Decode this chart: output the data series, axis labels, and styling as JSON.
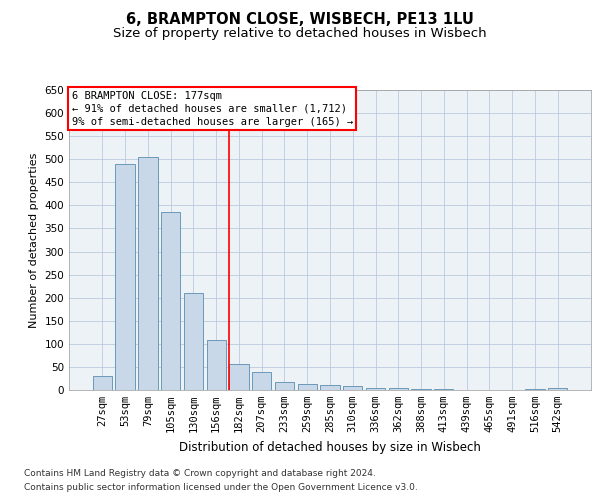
{
  "title1": "6, BRAMPTON CLOSE, WISBECH, PE13 1LU",
  "title2": "Size of property relative to detached houses in Wisbech",
  "xlabel": "Distribution of detached houses by size in Wisbech",
  "ylabel": "Number of detached properties",
  "categories": [
    "27sqm",
    "53sqm",
    "79sqm",
    "105sqm",
    "130sqm",
    "156sqm",
    "182sqm",
    "207sqm",
    "233sqm",
    "259sqm",
    "285sqm",
    "310sqm",
    "336sqm",
    "362sqm",
    "388sqm",
    "413sqm",
    "439sqm",
    "465sqm",
    "491sqm",
    "516sqm",
    "542sqm"
  ],
  "values": [
    30,
    490,
    505,
    385,
    210,
    108,
    57,
    38,
    17,
    13,
    10,
    9,
    5,
    5,
    3,
    3,
    1,
    1,
    1,
    3,
    4
  ],
  "bar_color": "#c8d8e8",
  "bar_edge_color": "#5b8db0",
  "grid_color": "#b0c4d8",
  "background_color": "#edf2f7",
  "annotation_line_index": 6,
  "annotation_box_text": [
    "6 BRAMPTON CLOSE: 177sqm",
    "← 91% of detached houses are smaller (1,712)",
    "9% of semi-detached houses are larger (165) →"
  ],
  "ylim": [
    0,
    650
  ],
  "yticks": [
    0,
    50,
    100,
    150,
    200,
    250,
    300,
    350,
    400,
    450,
    500,
    550,
    600,
    650
  ],
  "footnote1": "Contains HM Land Registry data © Crown copyright and database right 2024.",
  "footnote2": "Contains public sector information licensed under the Open Government Licence v3.0.",
  "title1_fontsize": 10.5,
  "title2_fontsize": 9.5,
  "xlabel_fontsize": 8.5,
  "ylabel_fontsize": 8,
  "tick_fontsize": 7.5,
  "annot_fontsize": 7.5,
  "footnote_fontsize": 6.5
}
